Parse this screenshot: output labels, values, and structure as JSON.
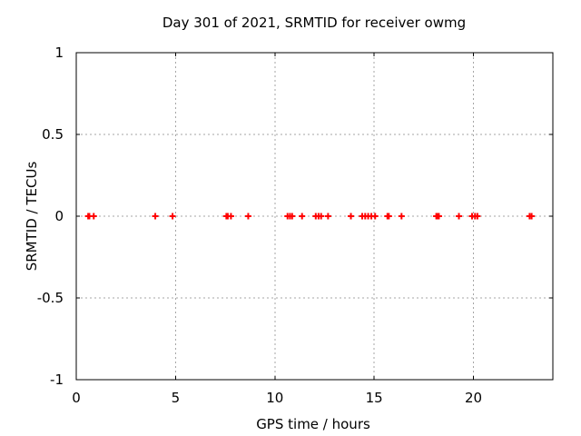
{
  "chart_data": {
    "type": "scatter",
    "title": "Day 301 of 2021, SRMTID for receiver owmg",
    "xlabel": "GPS time / hours",
    "ylabel": "SRMTID / TECUs",
    "xlim": [
      0,
      24
    ],
    "ylim": [
      -1,
      1
    ],
    "xticks": [
      0,
      5,
      10,
      15,
      20
    ],
    "xtick_labels": [
      "0",
      "5",
      "10",
      "15",
      "20"
    ],
    "yticks": [
      -1,
      -0.5,
      0,
      0.5,
      1
    ],
    "ytick_labels": [
      "-1",
      "-0.5",
      "0",
      "0.5",
      "1"
    ],
    "grid": true,
    "legend_position": "none",
    "marker": {
      "shape": "plus",
      "color": "#ff0000",
      "size": 7,
      "stroke_width": 2
    },
    "grid_color": "#a6a6a6",
    "border_color": "#000000",
    "text_color": "#000000",
    "background_color": "#ffffff",
    "series": [
      {
        "name": "SRMTID",
        "x": [
          0.6,
          0.66,
          0.88,
          3.98,
          4.85,
          7.56,
          7.63,
          7.79,
          8.66,
          10.64,
          10.76,
          10.87,
          11.37,
          12.06,
          12.2,
          12.33,
          12.68,
          13.83,
          14.4,
          14.55,
          14.7,
          14.86,
          15.05,
          15.67,
          15.74,
          16.38,
          18.13,
          18.19,
          18.26,
          19.27,
          19.93,
          20.08,
          20.2,
          22.83,
          22.93
        ],
        "y": [
          0,
          0,
          0,
          0,
          0,
          0,
          0,
          0,
          0,
          0,
          0,
          0,
          0,
          0,
          0,
          0,
          0,
          0,
          0,
          0,
          0,
          0,
          0,
          0,
          0,
          0,
          0,
          0,
          0,
          0,
          0,
          0,
          0,
          0,
          0
        ]
      }
    ]
  }
}
